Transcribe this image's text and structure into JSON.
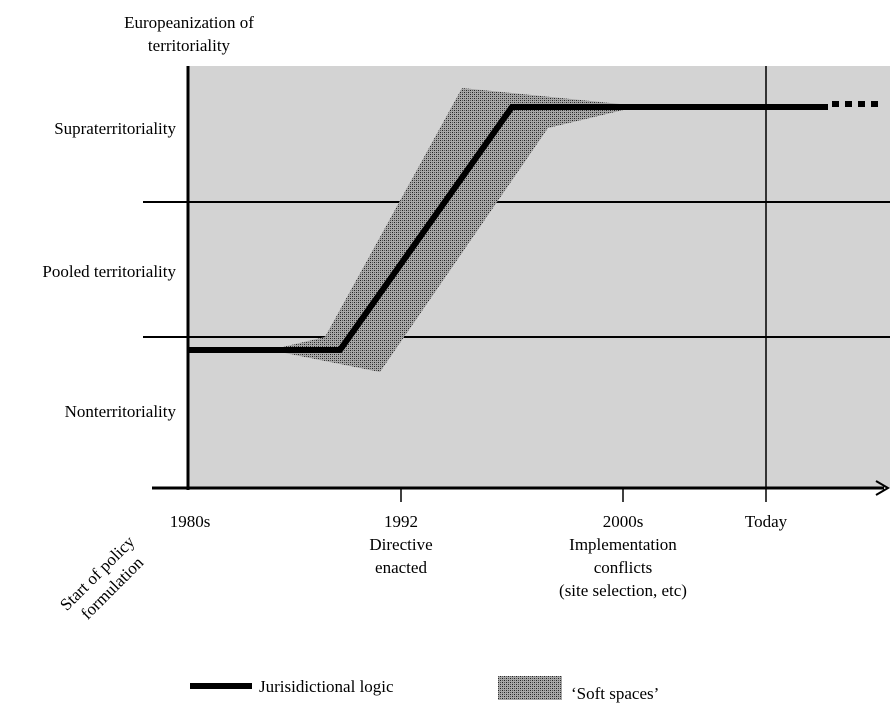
{
  "chart_data": {
    "type": "line",
    "title": "",
    "ylabel": [
      "Europeanization of",
      "territoriality"
    ],
    "y_levels": [
      "Supraterritoriality",
      "Pooled territoriality",
      "Nonterritoriality"
    ],
    "x_ticks": [
      {
        "label": "1980s",
        "sub": []
      },
      {
        "label": "1992",
        "sub": [
          "Directive",
          "enacted"
        ]
      },
      {
        "label": "2000s",
        "sub": [
          "Implementation",
          "conflicts",
          "(site selection, etc)"
        ]
      },
      {
        "label": "Today",
        "sub": []
      }
    ],
    "x_rotated_label": [
      "Start of policy",
      "formulation"
    ],
    "series": [
      {
        "name": "Jurisidictional logic",
        "style": "solid-thick-black",
        "continues": "dotted beyond today"
      },
      {
        "name": "‘Soft spaces’",
        "style": "stippled-band"
      }
    ],
    "background": "#d3d3d3",
    "grid": true
  }
}
